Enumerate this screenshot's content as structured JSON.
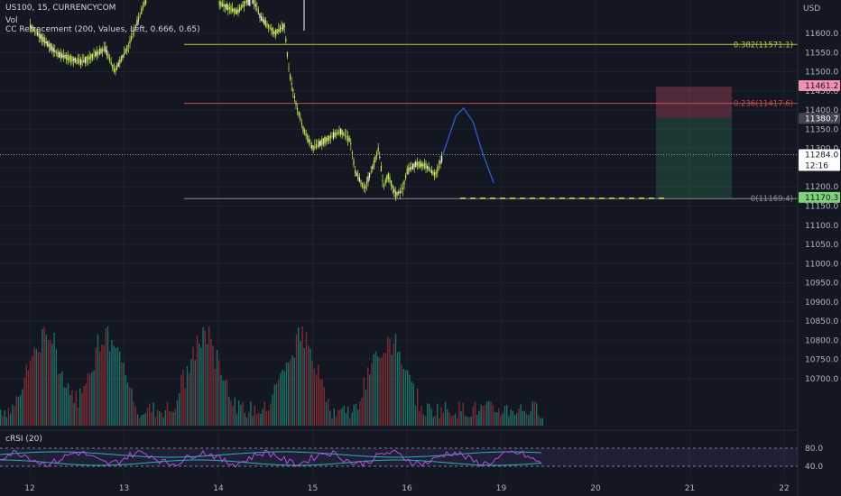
{
  "header": {
    "symbol": "US100, 15, CURRENCYCOM",
    "vol_label": "Vol",
    "indicator": "CC Retracement (200, Values, Left, 0.666, 0.65)"
  },
  "colors": {
    "background": "#131722",
    "up": "#c5e84a",
    "vol_up": "#1f7f73",
    "vol_down": "#8e2f35",
    "fib_0382": "#b7c94a",
    "fib_0236": "#c64a4e",
    "fib_0": "#8b8e96",
    "projection": "#2f5bd6",
    "crsi": "#b54fe0",
    "crsi_band": "#2bb0b0"
  },
  "price_axis": {
    "currency": "USD",
    "ticks": [
      "11600.0",
      "11550.0",
      "11500.0",
      "11450.0",
      "11400.0",
      "11350.0",
      "11300.0",
      "11250.0",
      "11200.0",
      "11150.0",
      "11100.0",
      "11050.0",
      "11000.0",
      "10950.0",
      "10900.0",
      "10850.0",
      "10800.0",
      "10750.0",
      "10700.0"
    ]
  },
  "price_tags": {
    "stop": "11461.2",
    "entry": "11380.7",
    "current_price": "11284.0",
    "countdown": "12:16",
    "target": "11170.3"
  },
  "levels": {
    "fib_0382": "0.382(11571.1)",
    "fib_0236": "0.236(11417.6)",
    "fib_0": "0(11169.4)"
  },
  "crsi": {
    "label": "cRSI (20)",
    "ticks": [
      "80.0",
      "40.0"
    ]
  },
  "time_axis": {
    "labels": [
      "12",
      "13",
      "14",
      "15",
      "16",
      "19",
      "20",
      "21",
      "22"
    ]
  },
  "chart_data": {
    "type": "candlestick",
    "symbol": "US100",
    "timeframe": "15",
    "ylim": [
      10680,
      11700
    ],
    "fib_levels": [
      {
        "ratio": 0.382,
        "price": 11571.1
      },
      {
        "ratio": 0.236,
        "price": 11417.6
      },
      {
        "ratio": 0,
        "price": 11169.4
      }
    ],
    "current_price": 11284.0,
    "position": {
      "type": "short",
      "entry": 11380.7,
      "stop": 11461.2,
      "target": 11170.3
    },
    "price_path": [
      {
        "x": 0.0,
        "y": 11620
      },
      {
        "x": 0.3,
        "y": 11545
      },
      {
        "x": 0.55,
        "y": 11525
      },
      {
        "x": 0.8,
        "y": 11560
      },
      {
        "x": 0.9,
        "y": 11500
      },
      {
        "x": 1.05,
        "y": 11570
      },
      {
        "x": 1.25,
        "y": 11700
      },
      {
        "x": 2.0,
        "y": 11680
      },
      {
        "x": 2.2,
        "y": 11655
      },
      {
        "x": 2.35,
        "y": 11700
      },
      {
        "x": 2.45,
        "y": 11640
      },
      {
        "x": 2.6,
        "y": 11600
      },
      {
        "x": 2.7,
        "y": 11620
      },
      {
        "x": 2.75,
        "y": 11500
      },
      {
        "x": 2.82,
        "y": 11420
      },
      {
        "x": 2.9,
        "y": 11350
      },
      {
        "x": 3.0,
        "y": 11300
      },
      {
        "x": 3.12,
        "y": 11320
      },
      {
        "x": 3.3,
        "y": 11345
      },
      {
        "x": 3.4,
        "y": 11320
      },
      {
        "x": 3.45,
        "y": 11240
      },
      {
        "x": 3.55,
        "y": 11195
      },
      {
        "x": 3.65,
        "y": 11260
      },
      {
        "x": 3.7,
        "y": 11300
      },
      {
        "x": 3.75,
        "y": 11200
      },
      {
        "x": 3.8,
        "y": 11230
      },
      {
        "x": 3.88,
        "y": 11180
      },
      {
        "x": 3.95,
        "y": 11190
      },
      {
        "x": 4.0,
        "y": 11240
      },
      {
        "x": 4.1,
        "y": 11260
      },
      {
        "x": 4.2,
        "y": 11255
      },
      {
        "x": 4.3,
        "y": 11230
      },
      {
        "x": 4.38,
        "y": 11280
      }
    ],
    "projection": [
      {
        "x": 4.38,
        "y": 11284
      },
      {
        "x": 4.52,
        "y": 11385
      },
      {
        "x": 4.6,
        "y": 11405
      },
      {
        "x": 4.7,
        "y": 11370
      },
      {
        "x": 4.8,
        "y": 11290
      },
      {
        "x": 4.92,
        "y": 11210
      }
    ],
    "x_ticks": [
      {
        "x": 0,
        "label": "12"
      },
      {
        "x": 1,
        "label": "13"
      },
      {
        "x": 2,
        "label": "14"
      },
      {
        "x": 3,
        "label": "15"
      },
      {
        "x": 4,
        "label": "16"
      },
      {
        "x": 5,
        "label": "19"
      },
      {
        "x": 6,
        "label": "20"
      },
      {
        "x": 7,
        "label": "21"
      },
      {
        "x": 8,
        "label": "22"
      }
    ],
    "crsi_lines": [
      80,
      40
    ],
    "volume_sessions": [
      0.15,
      0.8,
      1.85,
      2.85,
      3.8
    ]
  }
}
